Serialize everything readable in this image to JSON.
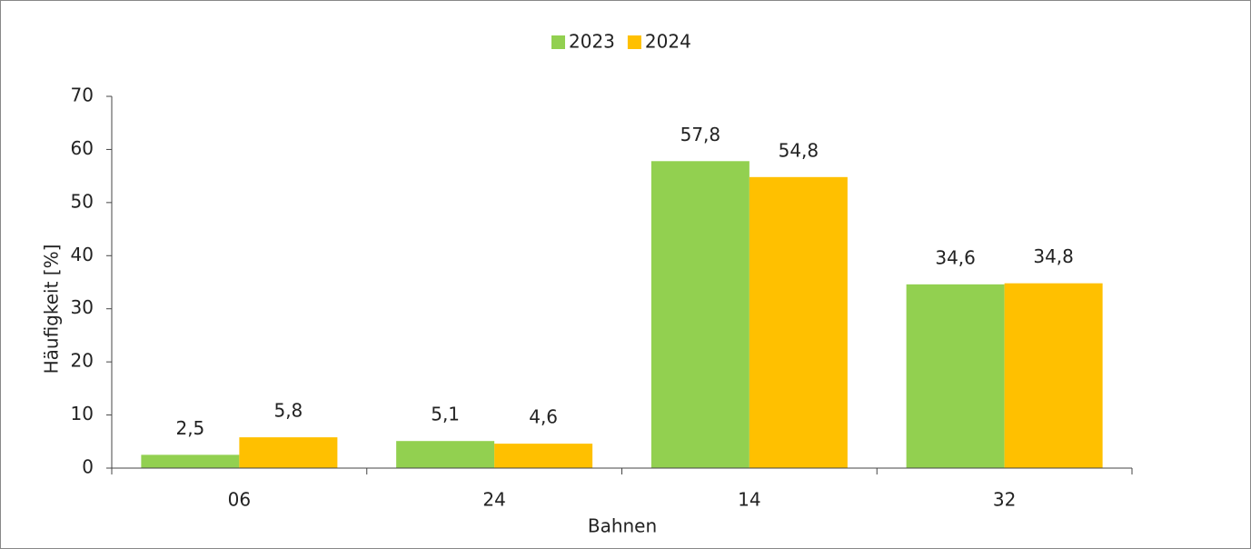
{
  "chart_data": {
    "type": "bar",
    "categories": [
      "06",
      "24",
      "14",
      "32"
    ],
    "series": [
      {
        "name": "2023",
        "color": "#92d050",
        "values": [
          2.5,
          5.1,
          57.8,
          34.6
        ],
        "value_labels": [
          "2,5",
          "5,1",
          "57,8",
          "34,6"
        ]
      },
      {
        "name": "2024",
        "color": "#ffc000",
        "values": [
          5.8,
          4.6,
          54.8,
          34.8
        ],
        "value_labels": [
          "5,8",
          "4,6",
          "54,8",
          "34,8"
        ]
      }
    ],
    "xlabel": "Bahnen",
    "ylabel": "Häufigkeit [%]",
    "ylim": [
      0,
      70
    ],
    "yticks": [
      0,
      10,
      20,
      30,
      40,
      50,
      60,
      70
    ],
    "legend": "top",
    "grid": false
  }
}
